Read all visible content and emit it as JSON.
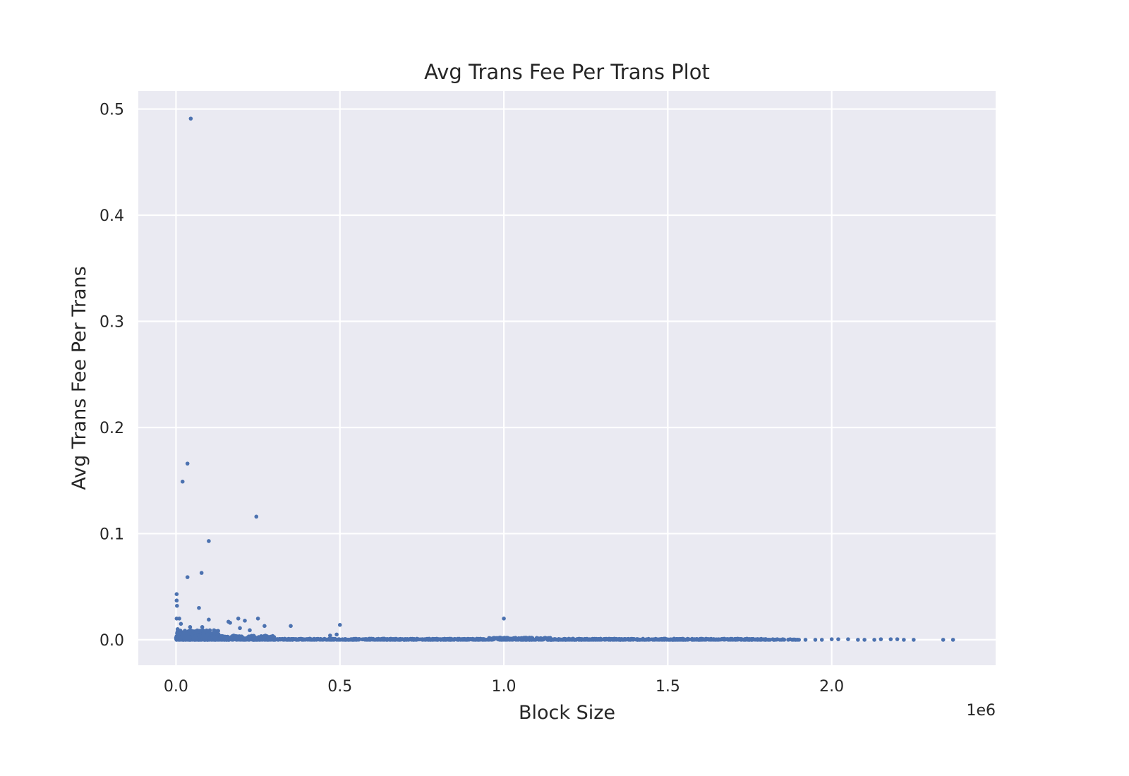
{
  "chart_data": {
    "type": "scatter",
    "title": "Avg Trans Fee Per Trans Plot",
    "xlabel": "Block Size",
    "ylabel": "Avg Trans Fee Per Trans",
    "x_offset_label": "1e6",
    "xlim": [
      -115000,
      2500000
    ],
    "ylim": [
      -0.024,
      0.517
    ],
    "x_ticks": [
      0,
      500000,
      1000000,
      1500000,
      2000000
    ],
    "x_tick_labels": [
      "0.0",
      "0.5",
      "1.0",
      "1.5",
      "2.0"
    ],
    "y_ticks": [
      0.0,
      0.1,
      0.2,
      0.3,
      0.4,
      0.5
    ],
    "y_tick_labels": [
      "0.0",
      "0.1",
      "0.2",
      "0.3",
      "0.4",
      "0.5"
    ],
    "grid": true,
    "background": "#eaeaf2",
    "marker_color": "#4c72b0",
    "series": [
      {
        "x": [
          45000,
          35000,
          20000,
          245000,
          100000,
          78000,
          35000,
          2000,
          2000,
          3000,
          70000,
          1000000,
          2000,
          10000,
          100000,
          160000,
          165000,
          190000,
          210000,
          250000,
          270000,
          350000,
          500000,
          43000,
          15000,
          225000,
          195000,
          5000,
          60000,
          80000,
          470000,
          490000
        ],
        "y": [
          0.491,
          0.166,
          0.149,
          0.116,
          0.093,
          0.063,
          0.059,
          0.043,
          0.037,
          0.032,
          0.03,
          0.02,
          0.02,
          0.02,
          0.019,
          0.017,
          0.016,
          0.02,
          0.018,
          0.02,
          0.013,
          0.013,
          0.014,
          0.012,
          0.015,
          0.009,
          0.011,
          0.01,
          0.008,
          0.012,
          0.004,
          0.005
        ]
      },
      {
        "x": [
          1900000,
          1920000,
          1950000,
          1970000,
          2000000,
          2020000,
          2050000,
          2080000,
          2100000,
          2130000,
          2150000,
          2180000,
          2200000,
          2220000,
          2250000,
          2340000,
          2370000
        ],
        "y": [
          0.0,
          0.0,
          0.0,
          0.0,
          0.0005,
          0.0005,
          0.0005,
          0.0,
          0.0,
          0.0,
          0.0005,
          0.0005,
          0.0005,
          0.0,
          0.0,
          0.0,
          0.0
        ]
      }
    ],
    "dense_band": [
      {
        "x_range": [
          0,
          130000
        ],
        "y_range": [
          0.0,
          0.009
        ],
        "count": 520
      },
      {
        "x_range": [
          130000,
          300000
        ],
        "y_range": [
          0.0,
          0.004
        ],
        "count": 260
      },
      {
        "x_range": [
          300000,
          950000
        ],
        "y_range": [
          0.0,
          0.001
        ],
        "count": 520
      },
      {
        "x_range": [
          950000,
          1150000
        ],
        "y_range": [
          0.0,
          0.002
        ],
        "count": 220
      },
      {
        "x_range": [
          1150000,
          1800000
        ],
        "y_range": [
          0.0,
          0.001
        ],
        "count": 520
      },
      {
        "x_range": [
          1800000,
          1900000
        ],
        "y_range": [
          0.0,
          0.0005
        ],
        "count": 35
      }
    ]
  }
}
